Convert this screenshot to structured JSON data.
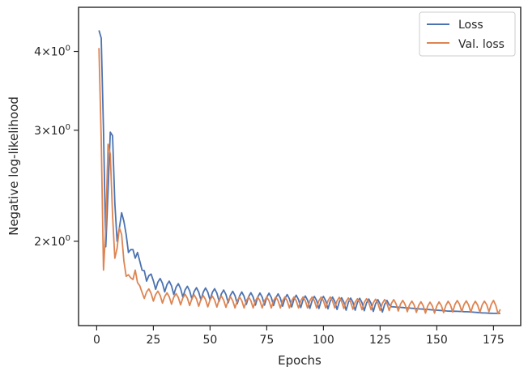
{
  "chart_data": {
    "type": "line",
    "xlabel": "Epochs",
    "ylabel": "Negative log-likelihood",
    "xlim": [
      -8,
      187
    ],
    "ylim": [
      1.47,
      4.7
    ],
    "yscale": "log",
    "x_ticks": [
      0,
      25,
      50,
      75,
      100,
      125,
      150,
      175
    ],
    "y_ticks": [
      {
        "value": 4,
        "base": "4",
        "exp": "0"
      },
      {
        "value": 3,
        "base": "3",
        "exp": "0"
      },
      {
        "value": 2,
        "base": "2",
        "exp": "0"
      }
    ],
    "grid": false,
    "legend_position": "top-right",
    "series": [
      {
        "name": "Loss",
        "color": "#4c72b0",
        "anchors": [
          [
            1,
            4.32
          ],
          [
            2,
            4.2
          ],
          [
            3,
            3.0
          ],
          [
            4,
            1.96
          ],
          [
            5,
            2.4
          ],
          [
            6,
            2.98
          ],
          [
            7,
            2.94
          ],
          [
            8,
            2.3
          ],
          [
            9,
            2.0
          ],
          [
            10,
            2.1
          ],
          [
            11,
            2.22
          ],
          [
            12,
            2.15
          ],
          [
            13,
            2.05
          ],
          [
            14,
            1.92
          ],
          [
            15,
            1.94
          ],
          [
            16,
            1.94
          ],
          [
            17,
            1.88
          ],
          [
            18,
            1.92
          ],
          [
            19,
            1.86
          ],
          [
            20,
            1.8
          ],
          [
            25,
            1.72
          ],
          [
            30,
            1.7
          ],
          [
            35,
            1.68
          ],
          [
            40,
            1.66
          ],
          [
            45,
            1.65
          ],
          [
            50,
            1.65
          ],
          [
            55,
            1.64
          ],
          [
            60,
            1.63
          ],
          [
            65,
            1.625
          ],
          [
            70,
            1.62
          ],
          [
            75,
            1.62
          ],
          [
            80,
            1.615
          ],
          [
            85,
            1.61
          ],
          [
            90,
            1.605
          ],
          [
            95,
            1.6
          ],
          [
            100,
            1.6
          ],
          [
            105,
            1.595
          ],
          [
            110,
            1.59
          ],
          [
            115,
            1.59
          ],
          [
            120,
            1.585
          ],
          [
            125,
            1.58
          ],
          [
            130,
            1.575
          ],
          [
            135,
            1.57
          ],
          [
            140,
            1.565
          ],
          [
            145,
            1.56
          ],
          [
            150,
            1.555
          ],
          [
            155,
            1.55
          ],
          [
            160,
            1.548
          ],
          [
            165,
            1.545
          ],
          [
            170,
            1.54
          ],
          [
            175,
            1.537
          ],
          [
            178,
            1.537
          ]
        ],
        "zigzag_from": 20,
        "zigzag_to": 130,
        "zigzag_amp": 0.022
      },
      {
        "name": "Val. loss",
        "color": "#dd8452",
        "anchors": [
          [
            1,
            4.05
          ],
          [
            2,
            2.9
          ],
          [
            3,
            1.8
          ],
          [
            4,
            2.1
          ],
          [
            5,
            2.85
          ],
          [
            6,
            2.75
          ],
          [
            7,
            2.2
          ],
          [
            8,
            1.88
          ],
          [
            9,
            1.95
          ],
          [
            10,
            2.1
          ],
          [
            11,
            2.05
          ],
          [
            12,
            1.86
          ],
          [
            13,
            1.76
          ],
          [
            14,
            1.77
          ],
          [
            15,
            1.75
          ],
          [
            16,
            1.74
          ],
          [
            17,
            1.8
          ],
          [
            18,
            1.72
          ],
          [
            19,
            1.7
          ],
          [
            20,
            1.66
          ],
          [
            25,
            1.64
          ],
          [
            30,
            1.625
          ],
          [
            35,
            1.62
          ],
          [
            40,
            1.615
          ],
          [
            45,
            1.61
          ],
          [
            50,
            1.605
          ],
          [
            55,
            1.605
          ],
          [
            60,
            1.6
          ],
          [
            65,
            1.6
          ],
          [
            70,
            1.6
          ],
          [
            75,
            1.6
          ],
          [
            80,
            1.6
          ],
          [
            85,
            1.6
          ],
          [
            90,
            1.6
          ],
          [
            95,
            1.6
          ],
          [
            100,
            1.6
          ],
          [
            105,
            1.6
          ],
          [
            110,
            1.595
          ],
          [
            115,
            1.59
          ],
          [
            120,
            1.59
          ],
          [
            125,
            1.585
          ],
          [
            130,
            1.585
          ],
          [
            135,
            1.58
          ],
          [
            140,
            1.575
          ],
          [
            145,
            1.57
          ],
          [
            150,
            1.57
          ],
          [
            155,
            1.575
          ],
          [
            160,
            1.58
          ],
          [
            165,
            1.575
          ],
          [
            170,
            1.575
          ],
          [
            175,
            1.58
          ],
          [
            178,
            1.56
          ]
        ],
        "zigzag_from": 20,
        "zigzag_to": 178,
        "zigzag_amp": 0.02
      }
    ]
  }
}
